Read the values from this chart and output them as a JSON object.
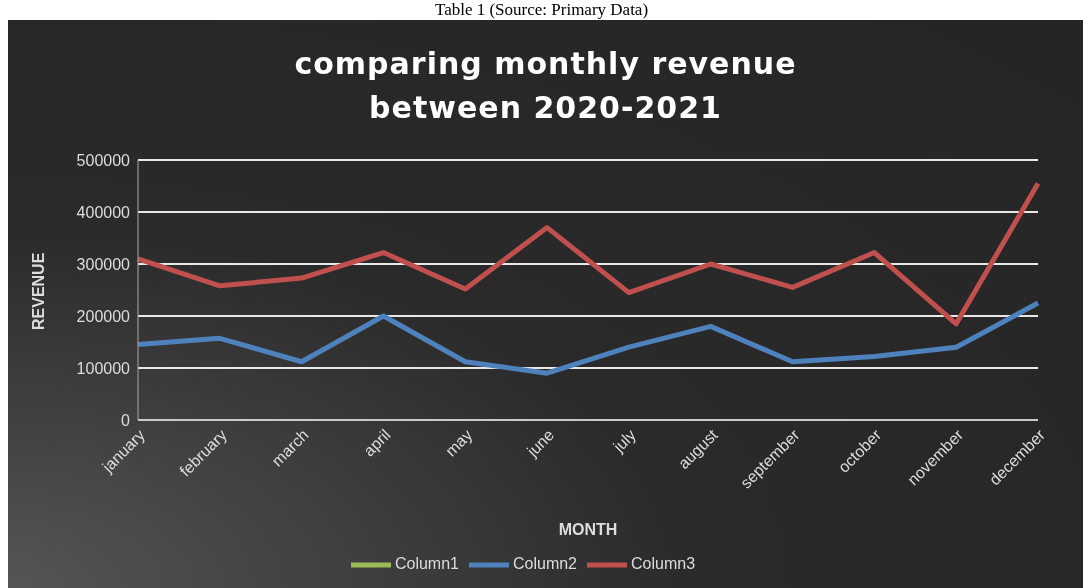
{
  "chart_data": {
    "type": "line",
    "title": "comparing  monthly  revenue  between 2020-2021",
    "xlabel": "MONTH",
    "ylabel": "REVENUE",
    "annotations": [
      "Table 1 (Source: Primary Data)"
    ],
    "categories": [
      "january",
      "february",
      "march",
      "april",
      "may",
      "june",
      "july",
      "august",
      "september",
      "october",
      "november",
      "december"
    ],
    "series": [
      {
        "name": "Column2",
        "color": "#4f81bd",
        "values": [
          145000,
          157000,
          112000,
          200000,
          112000,
          90000,
          140000,
          180000,
          112000,
          122000,
          140000,
          225000
        ]
      },
      {
        "name": "Column3",
        "color": "#c0504d",
        "values": [
          310000,
          258000,
          273000,
          322000,
          252000,
          370000,
          245000,
          300000,
          255000,
          322000,
          185000,
          455000
        ]
      },
      {
        "name": "Column1",
        "color": "#9bbb59",
        "values": [
          null,
          null,
          null,
          null,
          null,
          null,
          null,
          null,
          null,
          null,
          null,
          null
        ]
      }
    ],
    "ylim": [
      0,
      500000
    ],
    "yticks": [
      0,
      100000,
      200000,
      300000,
      400000,
      500000
    ],
    "grid": "y",
    "legend": "bottom",
    "marker": "none",
    "line_style": "solid"
  }
}
